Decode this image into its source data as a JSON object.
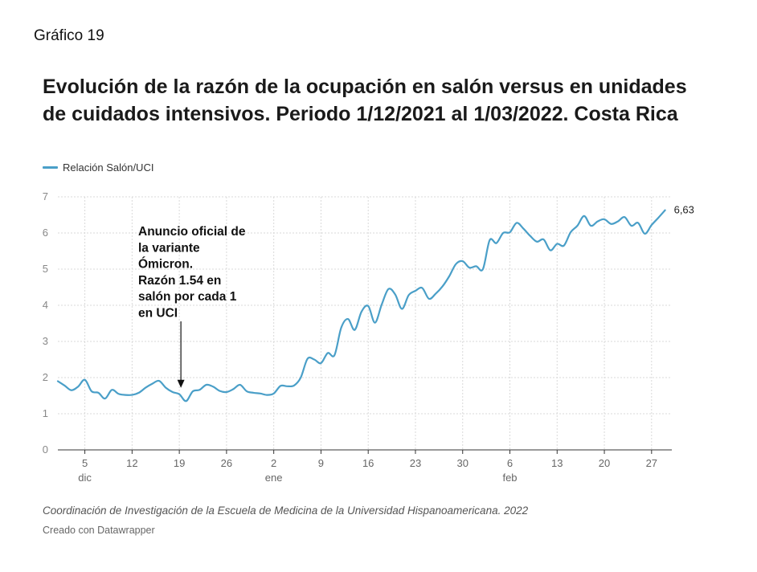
{
  "header": {
    "label": "Gráfico 19",
    "title": "Evolución de la razón de la ocupación en salón versus en unidades de cuidados intensivos. Periodo 1/12/2021 al 1/03/2022. Costa Rica"
  },
  "footer": {
    "notes": "Coordinación de Investigación de la Escuela de Medicina de la Universidad Hispanoamericana. 2022",
    "byline": "Creado con Datawrapper"
  },
  "chart_data": {
    "type": "line",
    "title": "Evolución de la razón de la ocupación en salón versus en unidades de cuidados intensivos. Periodo 1/12/2021 al 1/03/2022. Costa Rica",
    "xlabel": "",
    "ylabel": "",
    "xlim": [
      "2021-12-01",
      "2022-03-02"
    ],
    "ylim": [
      0,
      7
    ],
    "yticks": [
      "0",
      "1",
      "2",
      "3",
      "4",
      "5",
      "6",
      "7"
    ],
    "xticks": [
      {
        "date": "2021-12-05",
        "label": "5",
        "sublabel": "dic"
      },
      {
        "date": "2021-12-12",
        "label": "12",
        "sublabel": ""
      },
      {
        "date": "2021-12-19",
        "label": "19",
        "sublabel": ""
      },
      {
        "date": "2021-12-26",
        "label": "26",
        "sublabel": ""
      },
      {
        "date": "2022-01-02",
        "label": "2",
        "sublabel": "ene"
      },
      {
        "date": "2022-01-09",
        "label": "9",
        "sublabel": ""
      },
      {
        "date": "2022-01-16",
        "label": "16",
        "sublabel": ""
      },
      {
        "date": "2022-01-23",
        "label": "23",
        "sublabel": ""
      },
      {
        "date": "2022-01-30",
        "label": "30",
        "sublabel": ""
      },
      {
        "date": "2022-02-06",
        "label": "6",
        "sublabel": "feb"
      },
      {
        "date": "2022-02-13",
        "label": "13",
        "sublabel": ""
      },
      {
        "date": "2022-02-20",
        "label": "20",
        "sublabel": ""
      },
      {
        "date": "2022-02-27",
        "label": "27",
        "sublabel": ""
      }
    ],
    "grid": true,
    "legend_position": "top-left",
    "series": [
      {
        "name": "Relación Salón/UCI",
        "color": "#4a9fc8",
        "end_label": "6,63",
        "x": [
          "2021-12-01",
          "2021-12-02",
          "2021-12-03",
          "2021-12-04",
          "2021-12-05",
          "2021-12-06",
          "2021-12-07",
          "2021-12-08",
          "2021-12-09",
          "2021-12-10",
          "2021-12-11",
          "2021-12-12",
          "2021-12-13",
          "2021-12-14",
          "2021-12-15",
          "2021-12-16",
          "2021-12-17",
          "2021-12-18",
          "2021-12-19",
          "2021-12-20",
          "2021-12-21",
          "2021-12-22",
          "2021-12-23",
          "2021-12-24",
          "2021-12-25",
          "2021-12-26",
          "2021-12-27",
          "2021-12-28",
          "2021-12-29",
          "2021-12-30",
          "2021-12-31",
          "2022-01-01",
          "2022-01-02",
          "2022-01-03",
          "2022-01-04",
          "2022-01-05",
          "2022-01-06",
          "2022-01-07",
          "2022-01-08",
          "2022-01-09",
          "2022-01-10",
          "2022-01-11",
          "2022-01-12",
          "2022-01-13",
          "2022-01-14",
          "2022-01-15",
          "2022-01-16",
          "2022-01-17",
          "2022-01-18",
          "2022-01-19",
          "2022-01-20",
          "2022-01-21",
          "2022-01-22",
          "2022-01-23",
          "2022-01-24",
          "2022-01-25",
          "2022-01-26",
          "2022-01-27",
          "2022-01-28",
          "2022-01-29",
          "2022-01-30",
          "2022-01-31",
          "2022-02-01",
          "2022-02-02",
          "2022-02-03",
          "2022-02-04",
          "2022-02-05",
          "2022-02-06",
          "2022-02-07",
          "2022-02-08",
          "2022-02-09",
          "2022-02-10",
          "2022-02-11",
          "2022-02-12",
          "2022-02-13",
          "2022-02-14",
          "2022-02-15",
          "2022-02-16",
          "2022-02-17",
          "2022-02-18",
          "2022-02-19",
          "2022-02-20",
          "2022-02-21",
          "2022-02-22",
          "2022-02-23",
          "2022-02-24",
          "2022-02-25",
          "2022-02-26",
          "2022-02-27",
          "2022-02-28",
          "2022-03-01"
        ],
        "values": [
          1.9,
          1.78,
          1.65,
          1.75,
          1.94,
          1.62,
          1.58,
          1.42,
          1.66,
          1.55,
          1.52,
          1.52,
          1.58,
          1.72,
          1.83,
          1.91,
          1.72,
          1.6,
          1.54,
          1.35,
          1.62,
          1.66,
          1.8,
          1.75,
          1.63,
          1.6,
          1.68,
          1.8,
          1.62,
          1.58,
          1.56,
          1.52,
          1.56,
          1.77,
          1.76,
          1.78,
          2.0,
          2.52,
          2.5,
          2.4,
          2.68,
          2.62,
          3.38,
          3.62,
          3.32,
          3.82,
          3.98,
          3.52,
          4.02,
          4.45,
          4.3,
          3.9,
          4.28,
          4.4,
          4.48,
          4.18,
          4.32,
          4.52,
          4.8,
          5.14,
          5.22,
          5.04,
          5.08,
          5.0,
          5.8,
          5.72,
          6.0,
          6.02,
          6.28,
          6.12,
          5.92,
          5.76,
          5.82,
          5.52,
          5.7,
          5.65,
          6.02,
          6.2,
          6.47,
          6.2,
          6.32,
          6.38,
          6.25,
          6.32,
          6.44,
          6.2,
          6.28,
          5.98,
          6.22,
          6.42,
          6.63
        ]
      }
    ],
    "annotations": [
      {
        "lines": [
          "Anuncio oficial de",
          "la variante",
          "Ómicron.",
          "Razón 1.54 en",
          "salón por cada 1",
          "en UCI"
        ],
        "target_date": "2021-12-19",
        "target_value": 1.54
      }
    ]
  }
}
